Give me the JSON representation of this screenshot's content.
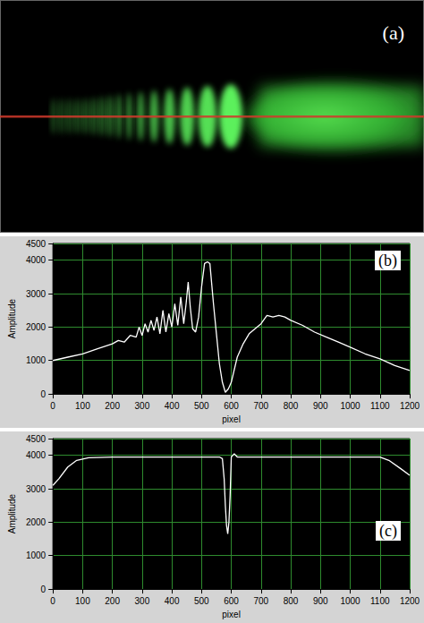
{
  "image_panel": {
    "annotation": "(a)"
  },
  "chart_data": [
    {
      "type": "line",
      "annotation": "(b)",
      "x_label": "pixel",
      "y_label": "Amplitude",
      "color": "#ffffff",
      "grid": true,
      "x": [
        0,
        50,
        100,
        150,
        200,
        220,
        240,
        260,
        280,
        290,
        300,
        310,
        320,
        330,
        340,
        350,
        360,
        370,
        380,
        390,
        400,
        410,
        420,
        430,
        440,
        448,
        455,
        462,
        470,
        480,
        490,
        500,
        510,
        520,
        528,
        540,
        550,
        560,
        570,
        580,
        590,
        600,
        620,
        640,
        660,
        680,
        700,
        720,
        740,
        760,
        780,
        800,
        840,
        880,
        920,
        960,
        1000,
        1050,
        1100,
        1150,
        1200
      ],
      "values": [
        1000,
        1100,
        1200,
        1350,
        1500,
        1600,
        1550,
        1750,
        1700,
        2000,
        1750,
        2100,
        1850,
        2200,
        1900,
        2300,
        1800,
        2500,
        1850,
        2400,
        2000,
        2700,
        2050,
        2900,
        2100,
        2700,
        3350,
        2600,
        1950,
        1850,
        2300,
        3200,
        3900,
        3950,
        3900,
        2700,
        1800,
        900,
        350,
        50,
        150,
        350,
        1100,
        1500,
        1800,
        1950,
        2100,
        2350,
        2300,
        2350,
        2300,
        2200,
        2050,
        1850,
        1700,
        1550,
        1400,
        1200,
        1050,
        850,
        700
      ],
      "xlim": [
        0,
        1200
      ],
      "xticks": [
        0,
        100,
        200,
        300,
        400,
        500,
        600,
        700,
        800,
        900,
        1000,
        1100,
        1200
      ],
      "ylim": [
        0,
        4500
      ],
      "yticks": [
        0,
        1000,
        2000,
        3000,
        4000,
        4500
      ]
    },
    {
      "type": "line",
      "annotation": "(c)",
      "x_label": "pixel",
      "y_label": "Amplitude",
      "color": "#ffffff",
      "grid": true,
      "x": [
        0,
        20,
        50,
        80,
        120,
        200,
        300,
        400,
        500,
        560,
        570,
        576,
        580,
        584,
        588,
        592,
        596,
        600,
        610,
        620,
        700,
        800,
        900,
        1000,
        1100,
        1130,
        1170,
        1200
      ],
      "values": [
        3100,
        3300,
        3650,
        3850,
        3930,
        3950,
        3950,
        3950,
        3950,
        3950,
        3900,
        3300,
        2500,
        1900,
        1650,
        2000,
        2800,
        3950,
        4050,
        3950,
        3950,
        3950,
        3950,
        3950,
        3950,
        3850,
        3600,
        3400
      ],
      "xlim": [
        0,
        1200
      ],
      "xticks": [
        0,
        100,
        200,
        300,
        400,
        500,
        600,
        700,
        800,
        900,
        1000,
        1100,
        1200
      ],
      "ylim": [
        0,
        4500
      ],
      "yticks": [
        0,
        1000,
        2000,
        3000,
        4000,
        4500
      ]
    }
  ]
}
